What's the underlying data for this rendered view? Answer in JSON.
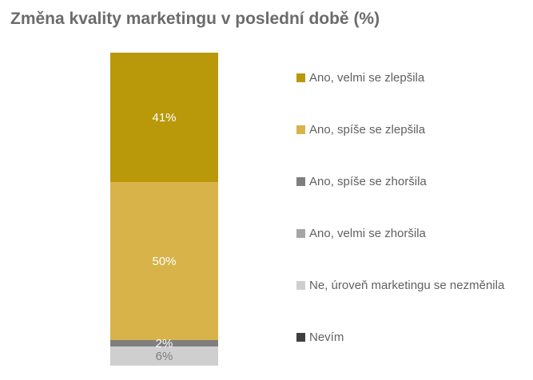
{
  "chart_data": {
    "type": "bar",
    "stacked": true,
    "orientation": "vertical",
    "title": "Změna kvality marketingu v poslední době (%)",
    "xlabel": "",
    "ylabel": "",
    "axes_visible": false,
    "grid": false,
    "legend_position": "right",
    "series": [
      {
        "name": "Ano, velmi se zlepšila",
        "value": 41,
        "color": "#B9980A",
        "label": "41%",
        "label_color": "#ffffff"
      },
      {
        "name": "Ano, spíše se zlepšila",
        "value": 50,
        "color": "#D7B34A",
        "label": "50%",
        "label_color": "#ffffff"
      },
      {
        "name": "Ano, spíše se zhoršila",
        "value": 2,
        "color": "#7F7F7F",
        "label": "2%",
        "label_color": "#ffffff"
      },
      {
        "name": "Ano, velmi se zhoršila",
        "value": 0,
        "color": "#A6A6A6",
        "label": "",
        "label_color": "#7F7F7F"
      },
      {
        "name": "Ne, úroveň marketingu se nezměnila",
        "value": 6,
        "color": "#CFCFCF",
        "label": "6%",
        "label_color": "#7F7F7F"
      },
      {
        "name": "Nevím",
        "value": 0,
        "color": "#3F3F3F",
        "label": "",
        "label_color": "#7F7F7F"
      }
    ]
  },
  "colors": {
    "background": "#ffffff",
    "title_text": "#6b6b6b",
    "legend_text": "#616161"
  }
}
